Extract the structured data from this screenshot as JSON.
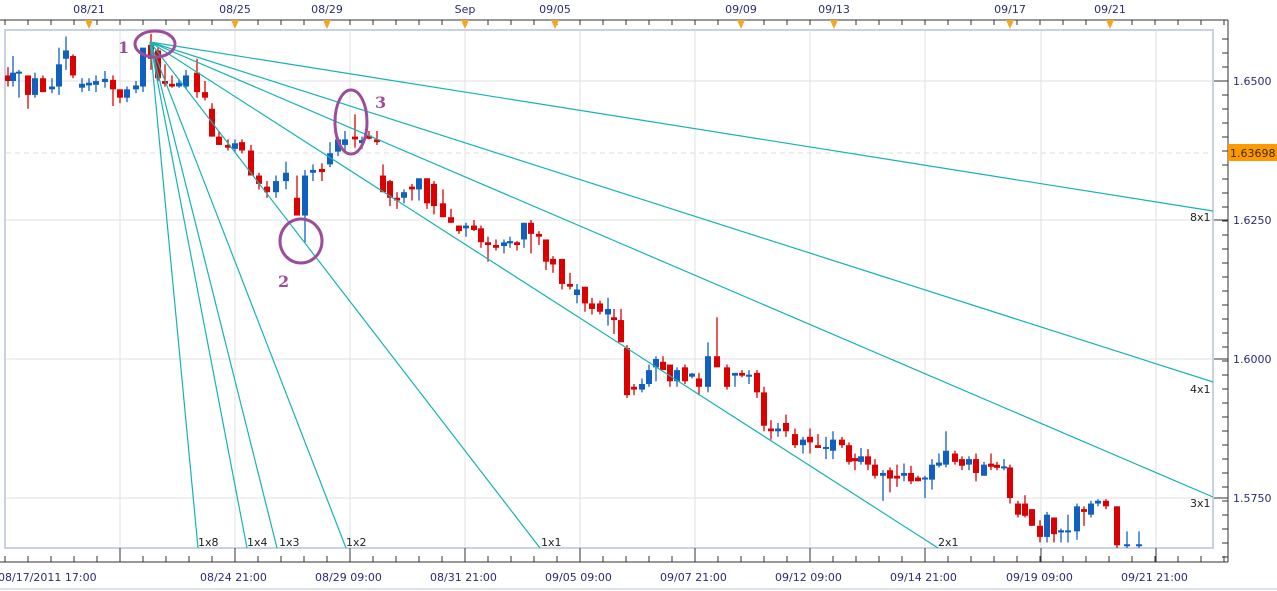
{
  "chart_data": {
    "type": "candlestick",
    "title": "",
    "instrument_price_axis": "right",
    "xlabel": "",
    "ylabel": "",
    "ylim": [
      1.5655,
      1.6585
    ],
    "y_ticks": [
      "1.6500",
      "1.6250",
      "1.6000",
      "1.5750"
    ],
    "current_price": "1.63698",
    "top_axis_dates": [
      "08/21",
      "08/25",
      "08/29",
      "Sep",
      "09/05",
      "09/09",
      "09/13",
      "09/17",
      "09/21"
    ],
    "bottom_axis_labels": [
      "08/17/2011 17:00",
      "08/24 21:00",
      "08/29 09:00",
      "08/31 21:00",
      "09/05 09:00",
      "09/07 21:00",
      "09/12 09:00",
      "09/14 21:00",
      "09/19 09:00",
      "09/21 21:00"
    ],
    "colors": {
      "bull": "#1060c0",
      "bear": "#dd0000",
      "fan": "#17b3b3",
      "annotation": "#9b4d9b",
      "current_price_bg": "#ff9900",
      "grid": "#e0e0e0",
      "axis_text": "#2b2b7a",
      "date_marker": "#f5a623"
    },
    "gann_fan": {
      "origin": {
        "time": "08/22",
        "price": 1.658
      },
      "lines": [
        {
          "label": "8x1"
        },
        {
          "label": "4x1"
        },
        {
          "label": "3x1"
        },
        {
          "label": "2x1"
        },
        {
          "label": "1x1"
        },
        {
          "label": "1x2"
        },
        {
          "label": "1x3"
        },
        {
          "label": "1x4"
        },
        {
          "label": "1x8"
        }
      ]
    },
    "annotations": [
      {
        "label": "1",
        "description": "fan origin at swing high"
      },
      {
        "label": "2",
        "description": "low touching 1x1 line"
      },
      {
        "label": "3",
        "description": "high rejected at 3x1 line"
      }
    ],
    "candles_approx": [
      {
        "o": 1.651,
        "h": 1.6525,
        "l": 1.649,
        "c": 1.65
      },
      {
        "o": 1.65,
        "h": 1.6545,
        "l": 1.649,
        "c": 1.6515
      },
      {
        "o": 1.6515,
        "h": 1.652,
        "l": 1.647,
        "c": 1.6515
      },
      {
        "o": 1.651,
        "h": 1.651,
        "l": 1.645,
        "c": 1.6475
      },
      {
        "o": 1.6475,
        "h": 1.6515,
        "l": 1.647,
        "c": 1.6505
      },
      {
        "o": 1.6505,
        "h": 1.651,
        "l": 1.648,
        "c": 1.648
      },
      {
        "o": 1.648,
        "h": 1.65,
        "l": 1.647,
        "c": 1.6488
      },
      {
        "o": 1.649,
        "h": 1.656,
        "l": 1.647,
        "c": 1.653
      },
      {
        "o": 1.653,
        "h": 1.658,
        "l": 1.652,
        "c": 1.6555
      },
      {
        "o": 1.6545,
        "h": 1.6575,
        "l": 1.6505,
        "c": 1.6515
      },
      {
        "o": 1.6488,
        "h": 1.6505,
        "l": 1.648,
        "c": 1.6495
      },
      {
        "o": 1.6492,
        "h": 1.6505,
        "l": 1.648,
        "c": 1.6497
      },
      {
        "o": 1.6495,
        "h": 1.651,
        "l": 1.648,
        "c": 1.6498
      },
      {
        "o": 1.65,
        "h": 1.6518,
        "l": 1.649,
        "c": 1.65
      },
      {
        "o": 1.65,
        "h": 1.651,
        "l": 1.6455,
        "c": 1.6485
      },
      {
        "o": 1.6485,
        "h": 1.6485,
        "l": 1.646,
        "c": 1.647
      },
      {
        "o": 1.647,
        "h": 1.649,
        "l": 1.646,
        "c": 1.6485
      },
      {
        "o": 1.6485,
        "h": 1.65,
        "l": 1.6475,
        "c": 1.649
      },
      {
        "o": 1.649,
        "h": 1.658,
        "l": 1.648,
        "c": 1.657
      },
      {
        "o": 1.656,
        "h": 1.6565,
        "l": 1.649,
        "c": 1.65
      }
    ]
  },
  "price_axis": {
    "labels": [
      "1.6500",
      "1.6250",
      "1.6000",
      "1.5750"
    ],
    "current": "1.63698"
  },
  "time_axis": {
    "top": [
      "08/21",
      "08/25",
      "08/29",
      "Sep",
      "09/05",
      "09/09",
      "09/13",
      "09/17",
      "09/21"
    ],
    "bottom": [
      "08/17/2011 17:00",
      "08/24 21:00",
      "08/29 09:00",
      "08/31 21:00",
      "09/05 09:00",
      "09/07 21:00",
      "09/12 09:00",
      "09/14 21:00",
      "09/19 09:00",
      "09/21 21:00"
    ]
  },
  "fan_labels": {
    "l8x1": "8x1",
    "l4x1": "4x1",
    "l3x1": "3x1",
    "l2x1": "2x1",
    "l1x1": "1x1",
    "l1x2": "1x2",
    "l1x3": "1x3",
    "l1x4": "1x4",
    "l1x8": "1x8"
  },
  "annotations": {
    "a1": "1",
    "a2": "2",
    "a3": "3"
  }
}
